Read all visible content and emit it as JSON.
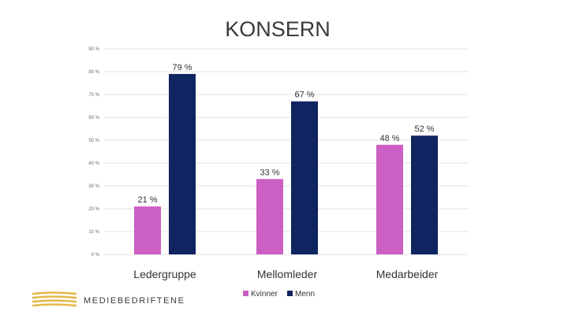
{
  "chart_data": {
    "type": "bar",
    "title": "KONSERN",
    "categories": [
      "Ledergruppe",
      "Mellomleder",
      "Medarbeider"
    ],
    "series": [
      {
        "name": "Kvinner",
        "values": [
          21,
          33,
          48
        ],
        "color": "#cc5fc3"
      },
      {
        "name": "Menn",
        "values": [
          79,
          67,
          52
        ],
        "color": "#0f2460"
      }
    ],
    "data_labels": [
      [
        "21 %",
        "33 %",
        "48 %"
      ],
      [
        "79 %",
        "67 %",
        "52 %"
      ]
    ],
    "ylim": [
      0,
      90
    ],
    "y_ticks": [
      0,
      10,
      20,
      30,
      40,
      50,
      60,
      70,
      80,
      90
    ],
    "y_tick_labels": [
      "0 %",
      "10 %",
      "20 %",
      "30 %",
      "40 %",
      "50 %",
      "60 %",
      "70 %",
      "80 %",
      "90 %"
    ],
    "xlabel": "",
    "ylabel": "",
    "grid": true,
    "legend_position": "bottom"
  },
  "brand": {
    "name": "MEDIEBEDRIFTENE",
    "logo_color": "#e6b84a",
    "icon": "striped-wave-logo-icon"
  }
}
